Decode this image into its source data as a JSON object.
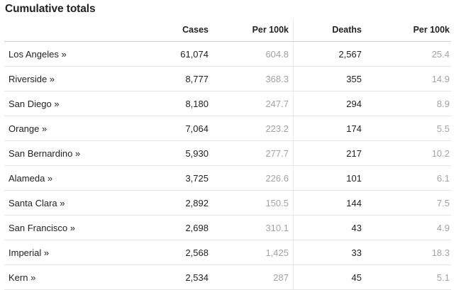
{
  "title": "Cumulative totals",
  "columns": [
    "",
    "Cases",
    "Per 100k",
    "Deaths",
    "Per 100k"
  ],
  "rows": [
    {
      "county": "Los Angeles »",
      "cases": "61,074",
      "cases_per_100k": "604.8",
      "deaths": "2,567",
      "deaths_per_100k": "25.4"
    },
    {
      "county": "Riverside »",
      "cases": "8,777",
      "cases_per_100k": "368.3",
      "deaths": "355",
      "deaths_per_100k": "14.9"
    },
    {
      "county": "San Diego »",
      "cases": "8,180",
      "cases_per_100k": "247.7",
      "deaths": "294",
      "deaths_per_100k": "8.9"
    },
    {
      "county": "Orange »",
      "cases": "7,064",
      "cases_per_100k": "223.2",
      "deaths": "174",
      "deaths_per_100k": "5.5"
    },
    {
      "county": "San Bernardino »",
      "cases": "5,930",
      "cases_per_100k": "277.7",
      "deaths": "217",
      "deaths_per_100k": "10.2"
    },
    {
      "county": "Alameda »",
      "cases": "3,725",
      "cases_per_100k": "226.6",
      "deaths": "101",
      "deaths_per_100k": "6.1"
    },
    {
      "county": "Santa Clara »",
      "cases": "2,892",
      "cases_per_100k": "150.5",
      "deaths": "144",
      "deaths_per_100k": "7.5"
    },
    {
      "county": "San Francisco »",
      "cases": "2,698",
      "cases_per_100k": "310.1",
      "deaths": "43",
      "deaths_per_100k": "4.9"
    },
    {
      "county": "Imperial »",
      "cases": "2,568",
      "cases_per_100k": "1,425",
      "deaths": "33",
      "deaths_per_100k": "18.3"
    },
    {
      "county": "Kern »",
      "cases": "2,534",
      "cases_per_100k": "287",
      "deaths": "45",
      "deaths_per_100k": "5.1"
    }
  ]
}
